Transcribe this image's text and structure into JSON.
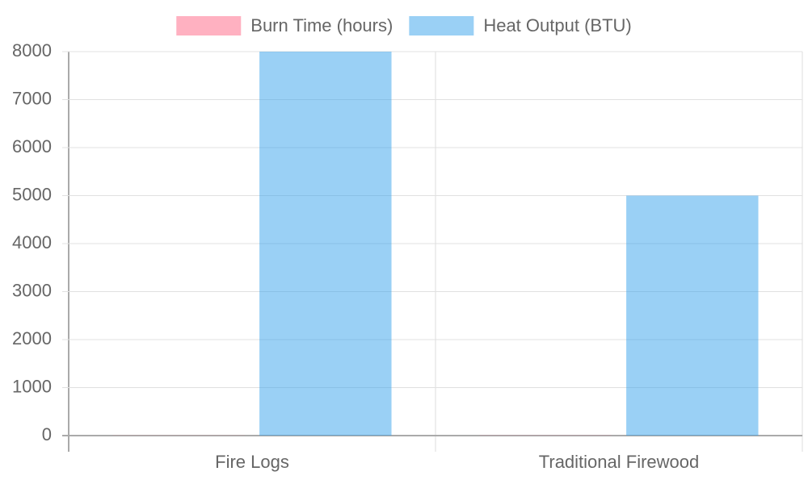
{
  "chart_data": {
    "type": "bar",
    "categories": [
      "Fire Logs",
      "Traditional Firewood"
    ],
    "series": [
      {
        "name": "Burn Time (hours)",
        "color": "rgba(255, 99, 132, 0.5)",
        "values": [
          3,
          4
        ]
      },
      {
        "name": "Heat Output (BTU)",
        "color": "rgba(54, 162, 235, 0.5)",
        "values": [
          8000,
          5000
        ]
      }
    ],
    "ylim": [
      0,
      8000
    ],
    "yticks": [
      0,
      1000,
      2000,
      3000,
      4000,
      5000,
      6000,
      7000,
      8000
    ],
    "grid": true,
    "legend": "top"
  }
}
